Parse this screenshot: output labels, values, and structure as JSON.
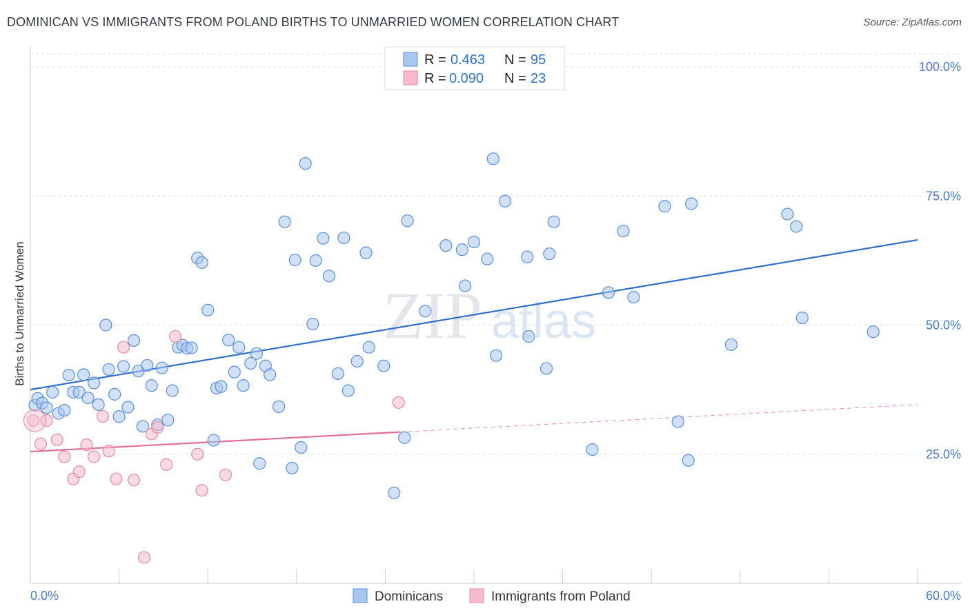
{
  "title": "DOMINICAN VS IMMIGRANTS FROM POLAND BIRTHS TO UNMARRIED WOMEN CORRELATION CHART",
  "source": "Source: ZipAtlas.com",
  "watermark": {
    "zip": "ZIP",
    "atlas": "atlas"
  },
  "legend_top": {
    "rows": [
      {
        "r_label": "R =",
        "r_value": "0.463",
        "n_label": "N =",
        "n_value": "95",
        "color": "#a9c6ee"
      },
      {
        "r_label": "R =",
        "r_value": "0.090",
        "n_label": "N =",
        "n_value": "23",
        "color": "#f6bccb"
      }
    ]
  },
  "legend_bottom": [
    {
      "label": "Dominicans",
      "color": "#a9c6ee"
    },
    {
      "label": "Immigrants from Poland",
      "color": "#f6bccb"
    }
  ],
  "colors": {
    "blue_fill": "#a9c6ee",
    "blue_stroke": "#5b8fd6",
    "blue_line": "#2f6fcc",
    "pink_fill": "#f6bccb",
    "pink_stroke": "#e48aa3",
    "pink_line": "#e36f95",
    "axis_text": "#4a7cc7",
    "grid": "#d8dde6"
  },
  "chart_data": {
    "type": "scatter",
    "ylabel": "Births to Unmarried Women",
    "xlim": [
      0,
      60
    ],
    "ylim": [
      0,
      100
    ],
    "x_tick_labels": [
      "0.0%",
      "60.0%"
    ],
    "y_ticks": [
      25,
      50,
      75,
      100
    ],
    "y_tick_labels": [
      "25.0%",
      "50.0%",
      "75.0%",
      "100.0%"
    ],
    "grid": true,
    "series": [
      {
        "name": "Dominicans",
        "R": 0.463,
        "N": 95,
        "trend": {
          "x": [
            0,
            60
          ],
          "y": [
            37.5,
            66.5
          ],
          "dashed_from": null
        },
        "points": [
          [
            0.3,
            34.5
          ],
          [
            0.5,
            35.8
          ],
          [
            0.8,
            34.9
          ],
          [
            1.1,
            34.0
          ],
          [
            1.5,
            37.0
          ],
          [
            1.9,
            32.9
          ],
          [
            2.3,
            33.5
          ],
          [
            2.6,
            40.3
          ],
          [
            2.9,
            37.0
          ],
          [
            3.3,
            37.0
          ],
          [
            3.6,
            40.4
          ],
          [
            3.9,
            35.9
          ],
          [
            4.3,
            38.8
          ],
          [
            4.6,
            34.6
          ],
          [
            5.1,
            50.0
          ],
          [
            5.3,
            41.4
          ],
          [
            5.7,
            36.6
          ],
          [
            6.0,
            32.3
          ],
          [
            6.3,
            42.0
          ],
          [
            6.6,
            34.1
          ],
          [
            7.0,
            47.0
          ],
          [
            7.3,
            41.1
          ],
          [
            7.6,
            30.4
          ],
          [
            7.9,
            42.2
          ],
          [
            8.2,
            38.3
          ],
          [
            8.6,
            30.7
          ],
          [
            8.9,
            41.7
          ],
          [
            9.3,
            31.6
          ],
          [
            9.6,
            37.3
          ],
          [
            10.0,
            45.7
          ],
          [
            10.3,
            46.1
          ],
          [
            10.6,
            45.5
          ],
          [
            10.9,
            45.6
          ],
          [
            11.3,
            63.0
          ],
          [
            11.6,
            62.1
          ],
          [
            12.0,
            52.9
          ],
          [
            12.4,
            27.7
          ],
          [
            12.6,
            37.8
          ],
          [
            12.9,
            38.1
          ],
          [
            13.4,
            47.1
          ],
          [
            13.8,
            40.9
          ],
          [
            14.1,
            45.7
          ],
          [
            14.4,
            38.3
          ],
          [
            14.9,
            42.6
          ],
          [
            15.3,
            44.5
          ],
          [
            15.5,
            23.2
          ],
          [
            15.9,
            42.1
          ],
          [
            16.2,
            40.4
          ],
          [
            16.8,
            34.2
          ],
          [
            17.2,
            70.0
          ],
          [
            17.7,
            22.3
          ],
          [
            17.9,
            62.6
          ],
          [
            18.3,
            26.3
          ],
          [
            18.6,
            81.3
          ],
          [
            19.1,
            50.2
          ],
          [
            19.3,
            62.5
          ],
          [
            19.8,
            66.8
          ],
          [
            20.2,
            59.5
          ],
          [
            20.8,
            40.6
          ],
          [
            21.2,
            66.9
          ],
          [
            21.5,
            37.3
          ],
          [
            22.1,
            43.0
          ],
          [
            22.7,
            64.0
          ],
          [
            22.9,
            45.7
          ],
          [
            23.9,
            42.1
          ],
          [
            24.6,
            17.5
          ],
          [
            25.3,
            28.2
          ],
          [
            25.5,
            70.2
          ],
          [
            26.7,
            52.7
          ],
          [
            28.1,
            65.4
          ],
          [
            29.2,
            64.6
          ],
          [
            29.4,
            57.6
          ],
          [
            30.0,
            66.1
          ],
          [
            30.9,
            62.8
          ],
          [
            31.3,
            82.2
          ],
          [
            31.5,
            44.1
          ],
          [
            32.1,
            74.0
          ],
          [
            33.6,
            63.2
          ],
          [
            33.7,
            47.8
          ],
          [
            34.9,
            41.6
          ],
          [
            35.1,
            63.8
          ],
          [
            35.4,
            70.0
          ],
          [
            38.0,
            25.9
          ],
          [
            39.1,
            56.3
          ],
          [
            40.1,
            68.2
          ],
          [
            40.8,
            55.4
          ],
          [
            42.9,
            73.0
          ],
          [
            43.8,
            31.3
          ],
          [
            44.5,
            23.8
          ],
          [
            44.7,
            73.5
          ],
          [
            47.4,
            46.2
          ],
          [
            51.2,
            71.5
          ],
          [
            51.8,
            69.1
          ],
          [
            52.2,
            51.4
          ],
          [
            57.0,
            48.7
          ]
        ]
      },
      {
        "name": "Immigrants from Poland",
        "R": 0.09,
        "N": 23,
        "trend": {
          "x": [
            0,
            60
          ],
          "y": [
            25.5,
            34.6
          ],
          "solid_until": 25
        },
        "points": [
          [
            0.2,
            31.5
          ],
          [
            0.7,
            27.0
          ],
          [
            1.1,
            31.5
          ],
          [
            1.8,
            27.8
          ],
          [
            2.3,
            24.5
          ],
          [
            2.9,
            20.2
          ],
          [
            3.3,
            21.6
          ],
          [
            3.8,
            26.8
          ],
          [
            4.3,
            24.5
          ],
          [
            4.9,
            32.3
          ],
          [
            5.3,
            25.6
          ],
          [
            5.8,
            20.2
          ],
          [
            6.3,
            45.7
          ],
          [
            7.0,
            20.0
          ],
          [
            7.7,
            5.0
          ],
          [
            8.2,
            28.9
          ],
          [
            8.6,
            30.2
          ],
          [
            9.2,
            23.0
          ],
          [
            9.8,
            47.8
          ],
          [
            11.3,
            25.0
          ],
          [
            11.6,
            18.0
          ],
          [
            13.2,
            21.0
          ],
          [
            24.9,
            35.0
          ]
        ]
      }
    ]
  }
}
